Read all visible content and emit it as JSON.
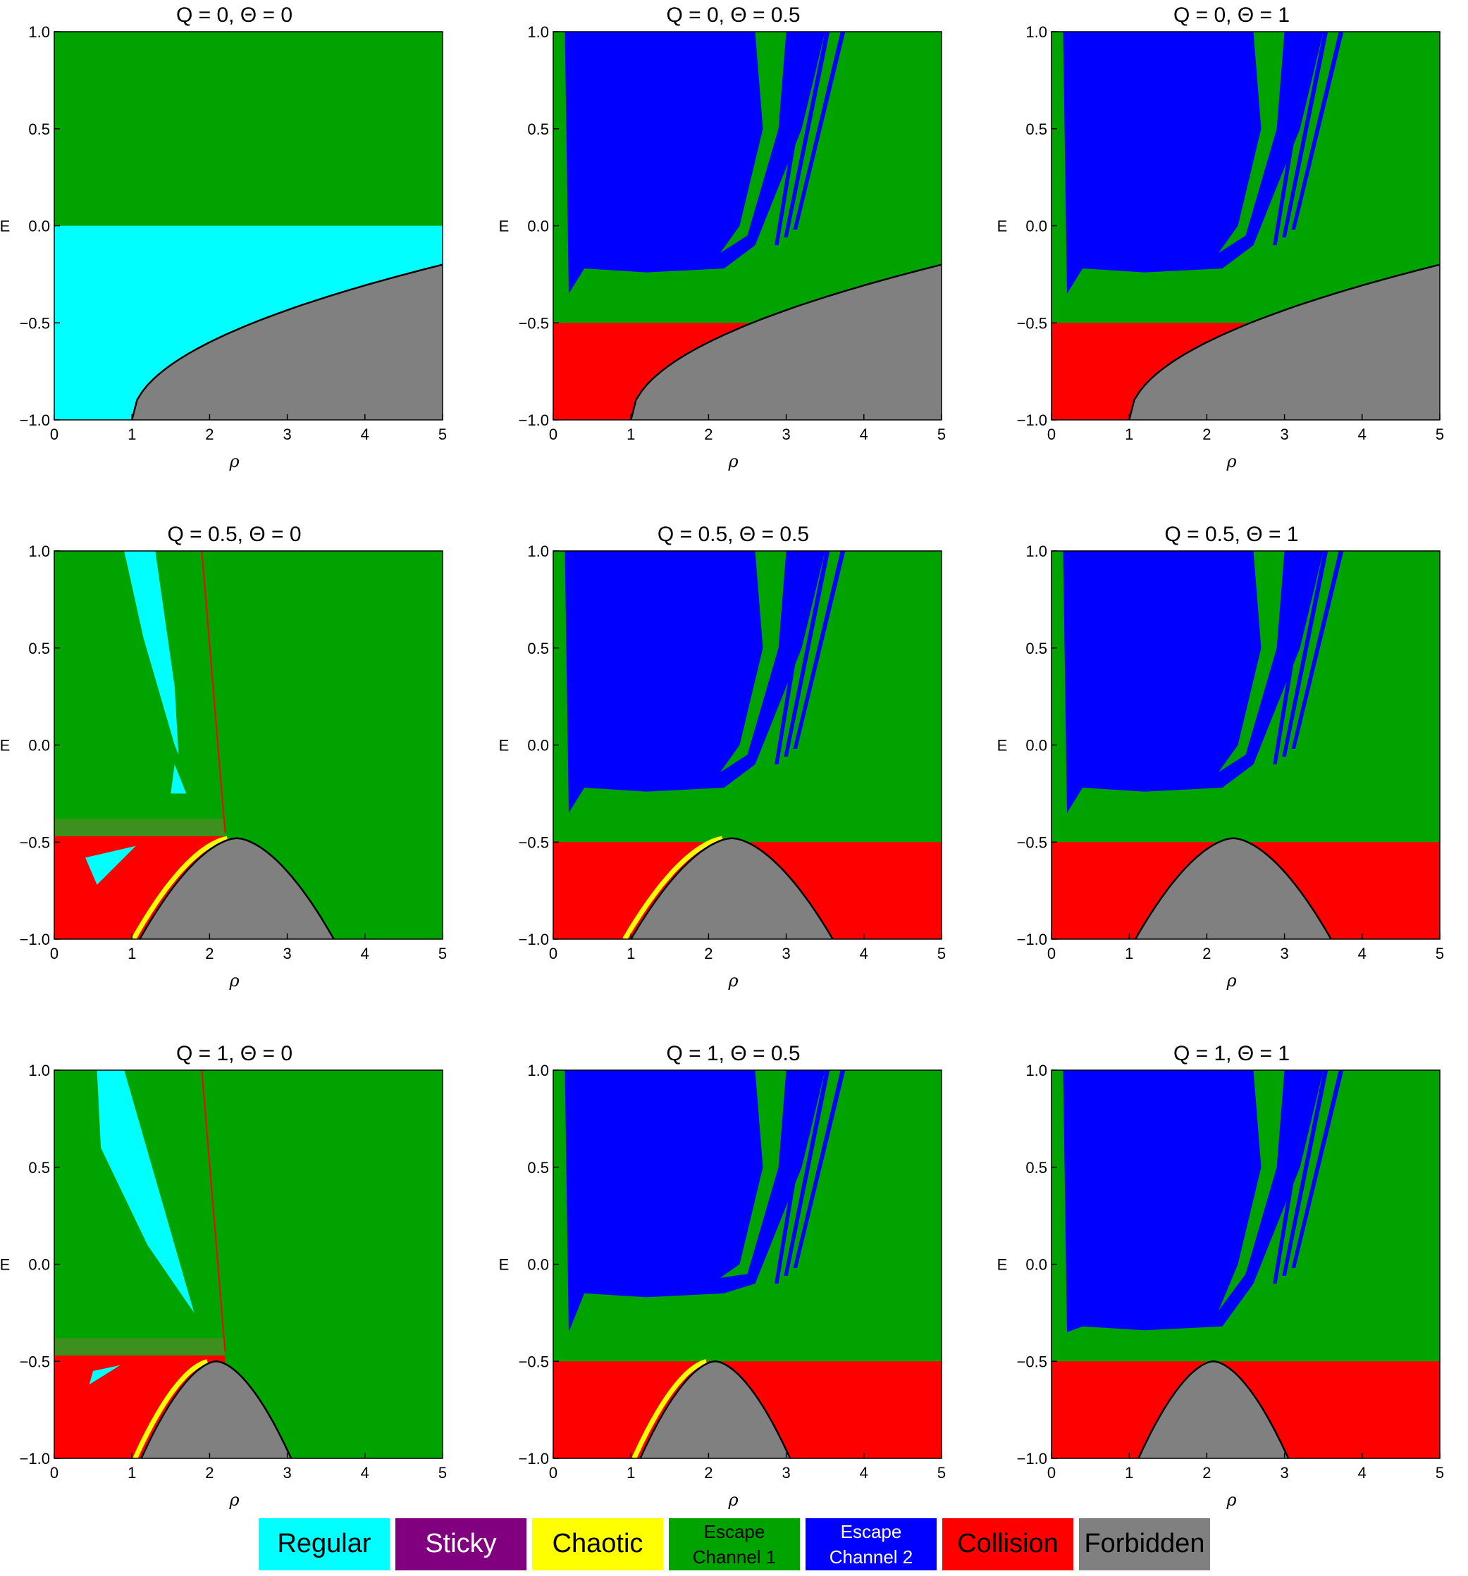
{
  "chart_data": [
    {
      "type": "heatmap",
      "title": "Q = 0,  Θ = 0",
      "Q": 0,
      "Theta": 0,
      "xlabel": "ρ",
      "ylabel": "E",
      "xlim": [
        0,
        5
      ],
      "ylim": [
        -1,
        1
      ],
      "x_ticks": [
        "0",
        "1",
        "2",
        "3",
        "4",
        "5"
      ],
      "y_ticks": [
        "−1.0",
        "−0.5",
        "0.0",
        "0.5",
        "1.0"
      ],
      "dominant_regions": [
        "Regular (E < 0)",
        "Escape Channel 1 (E > 0)",
        "Forbidden"
      ],
      "forbidden_boundary": "increasing curve from ρ=1, E=−1 to ρ=5, E≈−0.2"
    },
    {
      "type": "heatmap",
      "title": "Q = 0,  Θ = 0.5",
      "Q": 0,
      "Theta": 0.5,
      "xlabel": "ρ",
      "ylabel": "E",
      "xlim": [
        0,
        5
      ],
      "ylim": [
        -1,
        1
      ],
      "x_ticks": [
        "0",
        "1",
        "2",
        "3",
        "4",
        "5"
      ],
      "y_ticks": [
        "−1.0",
        "−0.5",
        "0.0",
        "0.5",
        "1.0"
      ],
      "dominant_regions": [
        "Escape Channel 2",
        "Escape Channel 1",
        "Collision (E < −0.5)",
        "Forbidden"
      ],
      "forbidden_boundary": "increasing curve from ρ=1, E=−1 to ρ=5, E≈−0.2"
    },
    {
      "type": "heatmap",
      "title": "Q = 0,  Θ = 1",
      "Q": 0,
      "Theta": 1,
      "xlabel": "ρ",
      "ylabel": "E",
      "xlim": [
        0,
        5
      ],
      "ylim": [
        -1,
        1
      ],
      "x_ticks": [
        "0",
        "1",
        "2",
        "3",
        "4",
        "5"
      ],
      "y_ticks": [
        "−1.0",
        "−0.5",
        "0.0",
        "0.5",
        "1.0"
      ],
      "dominant_regions": [
        "Escape Channel 2",
        "Escape Channel 1",
        "Collision (E < −0.5)",
        "Forbidden"
      ],
      "forbidden_boundary": "increasing curve from ρ=1, E=−1 to ρ=5, E≈−0.2"
    },
    {
      "type": "heatmap",
      "title": "Q = 0.5,  Θ = 0",
      "Q": 0.5,
      "Theta": 0,
      "xlabel": "ρ",
      "ylabel": "E",
      "xlim": [
        0,
        5
      ],
      "ylim": [
        -1,
        1
      ],
      "x_ticks": [
        "0",
        "1",
        "2",
        "3",
        "4",
        "5"
      ],
      "y_ticks": [
        "−1.0",
        "−0.5",
        "0.0",
        "0.5",
        "1.0"
      ],
      "dominant_regions": [
        "Escape Channel 1",
        "Regular (island near ρ≈1.3)",
        "Collision",
        "Chaotic (thin band)",
        "Forbidden"
      ],
      "forbidden_boundary": "parabola from ρ≈1.1 to ρ≈3.6, peak E≈−0.48 at ρ≈2.25"
    },
    {
      "type": "heatmap",
      "title": "Q = 0.5,  Θ = 0.5",
      "Q": 0.5,
      "Theta": 0.5,
      "xlabel": "ρ",
      "ylabel": "E",
      "xlim": [
        0,
        5
      ],
      "ylim": [
        -1,
        1
      ],
      "x_ticks": [
        "0",
        "1",
        "2",
        "3",
        "4",
        "5"
      ],
      "y_ticks": [
        "−1.0",
        "−0.5",
        "0.0",
        "0.5",
        "1.0"
      ],
      "dominant_regions": [
        "Escape Channel 2",
        "Escape Channel 1",
        "Collision",
        "Chaotic (thin band)",
        "Forbidden"
      ],
      "forbidden_boundary": "parabola from ρ≈1.0 to ρ≈3.6, peak E≈−0.48 at ρ≈2.25"
    },
    {
      "type": "heatmap",
      "title": "Q = 0.5,  Θ = 1",
      "Q": 0.5,
      "Theta": 1,
      "xlabel": "ρ",
      "ylabel": "E",
      "xlim": [
        0,
        5
      ],
      "ylim": [
        -1,
        1
      ],
      "x_ticks": [
        "0",
        "1",
        "2",
        "3",
        "4",
        "5"
      ],
      "y_ticks": [
        "−1.0",
        "−0.5",
        "0.0",
        "0.5",
        "1.0"
      ],
      "dominant_regions": [
        "Escape Channel 2",
        "Escape Channel 1",
        "Collision",
        "Forbidden"
      ],
      "forbidden_boundary": "parabola from ρ≈1.1 to ρ≈3.6, peak E≈−0.48 at ρ≈2.25"
    },
    {
      "type": "heatmap",
      "title": "Q = 1,  Θ = 0",
      "Q": 1,
      "Theta": 0,
      "xlabel": "ρ",
      "ylabel": "E",
      "xlim": [
        0,
        5
      ],
      "ylim": [
        -1,
        1
      ],
      "x_ticks": [
        "0",
        "1",
        "2",
        "3",
        "4",
        "5"
      ],
      "y_ticks": [
        "−1.0",
        "−0.5",
        "0.0",
        "0.5",
        "1.0"
      ],
      "dominant_regions": [
        "Escape Channel 1",
        "Regular (island near ρ≈1.2)",
        "Collision",
        "Forbidden"
      ],
      "forbidden_boundary": "parabola from ρ≈1.1 to ρ≈3.05, peak E≈−0.5 at ρ≈2.07"
    },
    {
      "type": "heatmap",
      "title": "Q = 1,  Θ = 0.5",
      "Q": 1,
      "Theta": 0.5,
      "xlabel": "ρ",
      "ylabel": "E",
      "xlim": [
        0,
        5
      ],
      "ylim": [
        -1,
        1
      ],
      "x_ticks": [
        "0",
        "1",
        "2",
        "3",
        "4",
        "5"
      ],
      "y_ticks": [
        "−1.0",
        "−0.5",
        "0.0",
        "0.5",
        "1.0"
      ],
      "dominant_regions": [
        "Escape Channel 2",
        "Escape Channel 1",
        "Collision",
        "Forbidden"
      ],
      "forbidden_boundary": "parabola from ρ≈1.1 to ρ≈3.05, peak E≈−0.5 at ρ≈2.07"
    },
    {
      "type": "heatmap",
      "title": "Q = 1,  Θ = 1",
      "Q": 1,
      "Theta": 1,
      "xlabel": "ρ",
      "ylabel": "E",
      "xlim": [
        0,
        5
      ],
      "ylim": [
        -1,
        1
      ],
      "x_ticks": [
        "0",
        "1",
        "2",
        "3",
        "4",
        "5"
      ],
      "y_ticks": [
        "−1.0",
        "−0.5",
        "0.0",
        "0.5",
        "1.0"
      ],
      "dominant_regions": [
        "Escape Channel 2",
        "Escape Channel 1",
        "Collision",
        "Forbidden"
      ],
      "forbidden_boundary": "parabola from ρ≈1.1 to ρ≈3.05, peak E≈−0.5 at ρ≈2.07"
    }
  ],
  "legend": {
    "items": [
      {
        "label": "Regular",
        "color": "#00ffff",
        "text_color": "#000000"
      },
      {
        "label": "Sticky",
        "color": "#800080",
        "text_color": "#ffffff"
      },
      {
        "label": "Chaotic",
        "color": "#ffff00",
        "text_color": "#000000"
      },
      {
        "label": "Escape\nChannel 1",
        "color": "#00a300",
        "text_color": "#000000"
      },
      {
        "label": "Escape\nChannel 2",
        "color": "#0000ff",
        "text_color": "#ffffff"
      },
      {
        "label": "Collision",
        "color": "#ff0000",
        "text_color": "#000000"
      },
      {
        "label": "Forbidden",
        "color": "#808080",
        "text_color": "#000000"
      }
    ]
  },
  "colors": {
    "regular": "#00ffff",
    "chaotic": "#ffff00",
    "escape1": "#00a300",
    "escape2": "#0000ff",
    "collision": "#ff0000",
    "forbidden": "#808080"
  }
}
